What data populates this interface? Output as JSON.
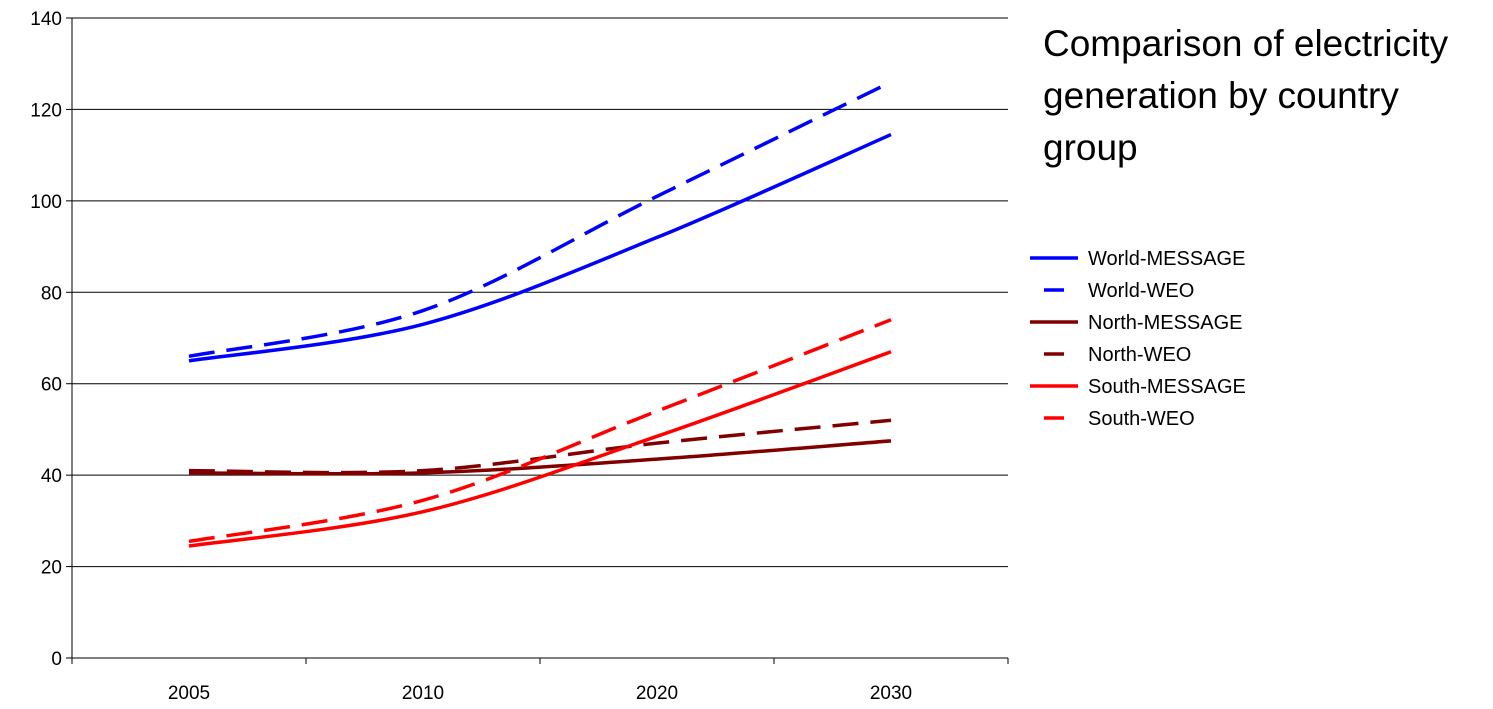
{
  "chart_data": {
    "type": "line",
    "title": "Comparison of electricity generation by country group",
    "title_lines": [
      "Comparison of electricity",
      "generation by country",
      "group"
    ],
    "xlabel": "",
    "ylabel": "",
    "categories": [
      "2005",
      "2010",
      "2020",
      "2030"
    ],
    "ylim": [
      0,
      140
    ],
    "yticks": [
      0,
      20,
      40,
      60,
      80,
      100,
      120,
      140
    ],
    "grid": "horizontal",
    "legend_position": "right",
    "series": [
      {
        "name": "World-MESSAGE",
        "values": [
          65,
          73,
          92,
          114.5
        ],
        "color": "#0000ff",
        "style": "solid"
      },
      {
        "name": "World-WEO",
        "values": [
          66,
          76,
          101,
          126
        ],
        "color": "#0000ff",
        "style": "dashed"
      },
      {
        "name": "North-MESSAGE",
        "values": [
          40.5,
          40.5,
          43.5,
          47.5
        ],
        "color": "#800000",
        "style": "solid"
      },
      {
        "name": "North-WEO",
        "values": [
          41,
          41,
          47,
          52
        ],
        "color": "#800000",
        "style": "dashed"
      },
      {
        "name": "South-MESSAGE",
        "values": [
          24.5,
          32,
          48.5,
          67
        ],
        "color": "#ff0000",
        "style": "solid"
      },
      {
        "name": "South-WEO",
        "values": [
          25.5,
          34.5,
          54,
          74
        ],
        "color": "#ff0000",
        "style": "dashed"
      }
    ]
  }
}
